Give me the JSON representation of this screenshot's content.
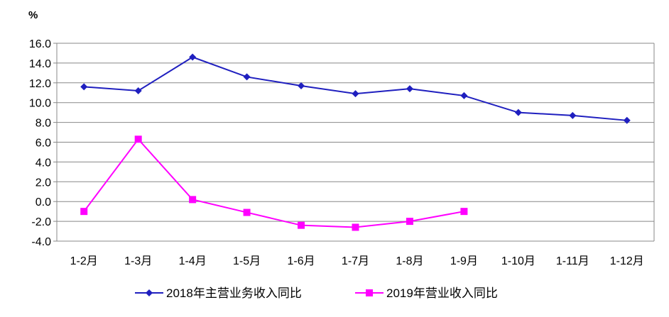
{
  "chart_data": {
    "type": "line",
    "ylabel": "%",
    "ylim": [
      -4,
      16
    ],
    "ytick_step": 2,
    "grid": true,
    "legend_position": "bottom",
    "categories": [
      "1-2月",
      "1-3月",
      "1-4月",
      "1-5月",
      "1-6月",
      "1-7月",
      "1-8月",
      "1-9月",
      "1-10月",
      "1-11月",
      "1-12月"
    ],
    "series": [
      {
        "name": "2018年主营业务收入同比",
        "color": "#1f1fbf",
        "marker": "diamond",
        "values": [
          11.6,
          11.2,
          14.6,
          12.6,
          11.7,
          10.9,
          11.4,
          10.7,
          9.0,
          8.7,
          8.2
        ]
      },
      {
        "name": "2019年营业收入同比",
        "color": "#ff00ff",
        "marker": "square",
        "values": [
          -1.0,
          6.3,
          0.2,
          -1.1,
          -2.4,
          -2.6,
          -2.0,
          -1.0,
          null,
          null,
          null
        ]
      }
    ]
  }
}
